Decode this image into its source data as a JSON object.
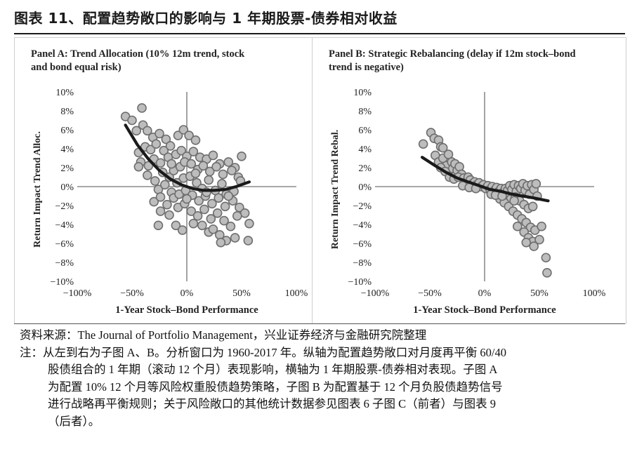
{
  "figure": {
    "title": "图表 11、配置趋势敞口的影响与 1 年期股票-债券相对收益"
  },
  "colors": {
    "point_fill": "#bdbdbd",
    "point_stroke": "#6e6e6e",
    "curve": "#1a1a1a",
    "axis_zero": "#8c8c8c"
  },
  "chart_data": [
    {
      "id": "panelA",
      "type": "scatter",
      "title": "Panel A: Trend Allocation (10% 12m trend, stock and bond equal risk)",
      "title_lines": [
        "Panel A: Trend Allocation (10% 12m trend, stock",
        "and bond equal risk)"
      ],
      "xlabel": "1-Year Stock–Bond Performance",
      "ylabel": "Return Impact Trend Alloc.",
      "xlim": [
        -100,
        100
      ],
      "ylim": [
        -10,
        10
      ],
      "x_ticks": [
        "−100%",
        "−50%",
        "0%",
        "50%",
        "100%"
      ],
      "x_tick_values": [
        -100,
        -50,
        0,
        50,
        100
      ],
      "y_ticks": [
        "10%",
        "8%",
        "6%",
        "4%",
        "2%",
        "0%",
        "−2%",
        "−4%",
        "−6%",
        "−8%",
        "−10%"
      ],
      "y_tick_values": [
        10,
        8,
        6,
        4,
        2,
        0,
        -2,
        -4,
        -6,
        -8,
        -10
      ],
      "fit_curve": {
        "x": [
          -56,
          -45,
          -35,
          -25,
          -15,
          -5,
          5,
          15,
          25,
          35,
          45,
          57
        ],
        "y": [
          6.5,
          4.4,
          2.9,
          1.7,
          0.8,
          0.2,
          -0.2,
          -0.4,
          -0.4,
          -0.3,
          0.0,
          0.5
        ]
      },
      "points": [
        [
          -56,
          7.4
        ],
        [
          -50,
          7.0
        ],
        [
          -41,
          8.3
        ],
        [
          -40,
          6.5
        ],
        [
          -46,
          5.9
        ],
        [
          -36,
          5.9
        ],
        [
          -31,
          5.2
        ],
        [
          -25,
          5.6
        ],
        [
          -19,
          5.0
        ],
        [
          -44,
          3.6
        ],
        [
          -38,
          4.2
        ],
        [
          -33,
          3.9
        ],
        [
          -28,
          4.5
        ],
        [
          -21,
          3.8
        ],
        [
          -15,
          4.3
        ],
        [
          -8,
          5.4
        ],
        [
          -3,
          6.0
        ],
        [
          2,
          5.4
        ],
        [
          8,
          4.9
        ],
        [
          -42,
          2.6
        ],
        [
          -35,
          2.2
        ],
        [
          -30,
          2.9
        ],
        [
          -24,
          2.5
        ],
        [
          -17,
          3.1
        ],
        [
          -10,
          3.4
        ],
        [
          -5,
          3.8
        ],
        [
          0,
          3.2
        ],
        [
          6,
          3.7
        ],
        [
          12,
          3.1
        ],
        [
          18,
          2.9
        ],
        [
          24,
          3.3
        ],
        [
          30,
          2.4
        ],
        [
          38,
          2.6
        ],
        [
          44,
          2.0
        ],
        [
          50,
          3.2
        ],
        [
          -36,
          1.2
        ],
        [
          -29,
          0.6
        ],
        [
          -22,
          1.5
        ],
        [
          -16,
          1.0
        ],
        [
          -12,
          1.7
        ],
        [
          -6,
          2.1
        ],
        [
          -2,
          2.6
        ],
        [
          4,
          2.4
        ],
        [
          10,
          1.8
        ],
        [
          15,
          2.2
        ],
        [
          21,
          1.6
        ],
        [
          27,
          2.1
        ],
        [
          33,
          1.3
        ],
        [
          41,
          1.7
        ],
        [
          47,
          1.0
        ],
        [
          -26,
          -0.3
        ],
        [
          -20,
          0.2
        ],
        [
          -14,
          -0.6
        ],
        [
          -9,
          0.4
        ],
        [
          -3,
          0.9
        ],
        [
          3,
          1.1
        ],
        [
          9,
          0.4
        ],
        [
          14,
          -0.2
        ],
        [
          20,
          0.7
        ],
        [
          26,
          -0.4
        ],
        [
          32,
          0.3
        ],
        [
          36,
          -0.8
        ],
        [
          43,
          -0.5
        ],
        [
          49,
          0.6
        ],
        [
          -30,
          -1.6
        ],
        [
          -24,
          -1.1
        ],
        [
          -18,
          -1.9
        ],
        [
          -12,
          -1.2
        ],
        [
          -7,
          -0.8
        ],
        [
          -1,
          -0.4
        ],
        [
          5,
          -0.9
        ],
        [
          11,
          -1.5
        ],
        [
          17,
          -1.0
        ],
        [
          23,
          -1.8
        ],
        [
          29,
          -1.2
        ],
        [
          35,
          -2.1
        ],
        [
          42,
          -1.5
        ],
        [
          48,
          -2.2
        ],
        [
          53,
          -2.8
        ],
        [
          -24,
          -2.6
        ],
        [
          -16,
          -3.0
        ],
        [
          -8,
          -2.2
        ],
        [
          -2,
          -1.8
        ],
        [
          4,
          -2.6
        ],
        [
          10,
          -3.1
        ],
        [
          16,
          -2.4
        ],
        [
          22,
          -3.4
        ],
        [
          28,
          -2.8
        ],
        [
          34,
          -3.6
        ],
        [
          40,
          -4.2
        ],
        [
          46,
          -3.1
        ],
        [
          -26,
          -4.1
        ],
        [
          -10,
          -4.1
        ],
        [
          -4,
          -4.6
        ],
        [
          6,
          -3.9
        ],
        [
          14,
          -4.1
        ],
        [
          20,
          -4.8
        ],
        [
          24,
          -4.5
        ],
        [
          30,
          -5.1
        ],
        [
          36,
          -5.7
        ],
        [
          44,
          -5.4
        ],
        [
          31,
          -5.9
        ],
        [
          57,
          -3.9
        ],
        [
          56,
          -5.7
        ],
        [
          38,
          -1.0
        ],
        [
          -44,
          2.1
        ],
        [
          18,
          -0.6
        ],
        [
          8,
          1.4
        ],
        [
          0,
          -1.3
        ],
        [
          -14,
          2.4
        ]
      ]
    },
    {
      "id": "panelB",
      "type": "scatter",
      "title": "Panel B: Strategic Rebalancing (delay if 12m stock–bond trend is negative)",
      "title_lines": [
        "Panel B: Strategic Rebalancing (delay if 12m stock–bond",
        "trend is negative)"
      ],
      "xlabel": "1-Year Stock–Bond Performance",
      "ylabel": "Return Impact Trend Rebal.",
      "xlim": [
        -100,
        100
      ],
      "ylim": [
        -10,
        10
      ],
      "x_ticks": [
        "−100%",
        "−50%",
        "0%",
        "50%",
        "100%"
      ],
      "x_tick_values": [
        -100,
        -50,
        0,
        50,
        100
      ],
      "y_ticks": [
        "10%",
        "8%",
        "6%",
        "4%",
        "2%",
        "0%",
        "−2%",
        "−4%",
        "−6%",
        "−8%",
        "−10%"
      ],
      "y_tick_values": [
        10,
        8,
        6,
        4,
        2,
        0,
        -2,
        -4,
        -6,
        -8,
        -10
      ],
      "fit_curve": {
        "x": [
          -57,
          -45,
          -35,
          -25,
          -15,
          -5,
          5,
          15,
          25,
          35,
          45,
          58
        ],
        "y": [
          3.1,
          2.2,
          1.5,
          0.9,
          0.5,
          0.1,
          -0.3,
          -0.5,
          -0.8,
          -1.0,
          -1.2,
          -1.5
        ]
      },
      "points": [
        [
          -56,
          4.5
        ],
        [
          -49,
          5.7
        ],
        [
          -46,
          5.1
        ],
        [
          -42,
          4.9
        ],
        [
          -40,
          4.2
        ],
        [
          -38,
          4.1
        ],
        [
          -45,
          3.3
        ],
        [
          -42,
          2.6
        ],
        [
          -38,
          3.0
        ],
        [
          -35,
          2.2
        ],
        [
          -33,
          3.4
        ],
        [
          -30,
          2.6
        ],
        [
          -29,
          1.9
        ],
        [
          -27,
          2.4
        ],
        [
          -25,
          1.7
        ],
        [
          -23,
          2.1
        ],
        [
          -21,
          1.3
        ],
        [
          -40,
          2.0
        ],
        [
          -36,
          1.6
        ],
        [
          -32,
          1.0
        ],
        [
          -28,
          0.8
        ],
        [
          -24,
          1.0
        ],
        [
          -19,
          0.9
        ],
        [
          -17,
          0.5
        ],
        [
          -15,
          1.0
        ],
        [
          -13,
          0.7
        ],
        [
          -11,
          0.3
        ],
        [
          -9,
          0.5
        ],
        [
          -7,
          0.2
        ],
        [
          -5,
          0.4
        ],
        [
          -3,
          0.0
        ],
        [
          -1,
          0.2
        ],
        [
          1,
          -0.2
        ],
        [
          3,
          0.1
        ],
        [
          5,
          -0.3
        ],
        [
          7,
          0.0
        ],
        [
          9,
          -0.4
        ],
        [
          11,
          -0.1
        ],
        [
          13,
          -0.5
        ],
        [
          15,
          -0.2
        ],
        [
          17,
          -0.6
        ],
        [
          19,
          -0.2
        ],
        [
          21,
          -0.4
        ],
        [
          23,
          0.1
        ],
        [
          25,
          -0.3
        ],
        [
          27,
          0.2
        ],
        [
          29,
          -0.5
        ],
        [
          31,
          0.1
        ],
        [
          33,
          -0.2
        ],
        [
          35,
          0.3
        ],
        [
          37,
          -0.4
        ],
        [
          39,
          0.1
        ],
        [
          41,
          -0.8
        ],
        [
          43,
          0.2
        ],
        [
          45,
          -0.3
        ],
        [
          47,
          0.3
        ],
        [
          20,
          -1.0
        ],
        [
          24,
          -1.3
        ],
        [
          28,
          -1.1
        ],
        [
          32,
          -1.5
        ],
        [
          36,
          -1.9
        ],
        [
          40,
          -2.3
        ],
        [
          44,
          -2.1
        ],
        [
          14,
          -1.3
        ],
        [
          18,
          -1.7
        ],
        [
          22,
          -2.1
        ],
        [
          26,
          -2.6
        ],
        [
          30,
          -3.0
        ],
        [
          34,
          -3.4
        ],
        [
          38,
          -3.8
        ],
        [
          42,
          -4.3
        ],
        [
          46,
          -4.6
        ],
        [
          30,
          -4.2
        ],
        [
          36,
          -4.8
        ],
        [
          40,
          -5.4
        ],
        [
          44,
          -5.8
        ],
        [
          50,
          -5.6
        ],
        [
          52,
          -4.2
        ],
        [
          38,
          -5.9
        ],
        [
          45,
          -6.3
        ],
        [
          56,
          -7.5
        ],
        [
          57,
          -9.1
        ],
        [
          -20,
          0.1
        ],
        [
          -14,
          -0.1
        ],
        [
          -8,
          -0.2
        ],
        [
          6,
          -0.8
        ],
        [
          10,
          -0.9
        ],
        [
          16,
          -1.0
        ],
        [
          48,
          -1.0
        ],
        [
          27,
          -1.5
        ]
      ]
    }
  ],
  "notes": {
    "source": "资料来源：The Journal of Portfolio Management，兴业证券经济与金融研究院整理",
    "note_1": "注：从左到右为子图 A、B。分析窗口为 1960-2017 年。纵轴为配置趋势敞口对月度再平衡 60/40",
    "note_2": "股债组合的 1 年期（滚动 12 个月）表现影响，横轴为 1 年期股票-债券相对表现。子图 A",
    "note_3": "为配置 10% 12 个月等风险权重股债趋势策略，子图 B 为配置基于 12 个月负股债趋势信号",
    "note_4": "进行战略再平衡规则；关于风险敞口的其他统计数据参见图表 6 子图 C（前者）与图表 9",
    "note_5": "（后者）。"
  }
}
